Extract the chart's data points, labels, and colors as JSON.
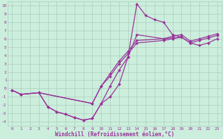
{
  "title": "",
  "xlabel": "Windchill (Refroidissement éolien,°C)",
  "bg_color": "#cceedd",
  "grid_color": "#aaccbb",
  "line_color": "#993399",
  "xlim": [
    -0.5,
    23.5
  ],
  "ylim": [
    -4.5,
    10.5
  ],
  "xticks": [
    0,
    1,
    2,
    3,
    4,
    5,
    6,
    7,
    8,
    9,
    10,
    11,
    12,
    13,
    14,
    15,
    16,
    17,
    18,
    19,
    20,
    21,
    22,
    23
  ],
  "yticks": [
    -4,
    -3,
    -2,
    -1,
    0,
    1,
    2,
    3,
    4,
    5,
    6,
    7,
    8,
    9,
    10
  ],
  "lines": [
    {
      "x": [
        0,
        1,
        3,
        4,
        5,
        6,
        7,
        8,
        9,
        10,
        11,
        12,
        13,
        14,
        15,
        16,
        17,
        18,
        19,
        20,
        21,
        22,
        23
      ],
      "y": [
        -0.2,
        -0.7,
        -0.5,
        -2.2,
        -2.8,
        -3.1,
        -3.5,
        -3.8,
        -3.6,
        -1.8,
        0.3,
        2.2,
        3.8,
        10.2,
        8.8,
        8.3,
        8.0,
        6.5,
        6.2,
        5.5,
        5.2,
        5.5,
        6.0
      ]
    },
    {
      "x": [
        0,
        1,
        3,
        9,
        10,
        11,
        12,
        13,
        14,
        17,
        18,
        19,
        20,
        21,
        22,
        23
      ],
      "y": [
        -0.2,
        -0.7,
        -0.5,
        -1.8,
        0.3,
        1.5,
        3.0,
        4.2,
        5.5,
        5.8,
        6.0,
        6.2,
        5.5,
        5.8,
        6.1,
        6.4
      ]
    },
    {
      "x": [
        0,
        1,
        3,
        9,
        10,
        11,
        12,
        13,
        14,
        17,
        18,
        19,
        20,
        21,
        22,
        23
      ],
      "y": [
        -0.2,
        -0.7,
        -0.5,
        -1.8,
        0.3,
        1.8,
        3.3,
        4.5,
        5.8,
        6.0,
        6.3,
        6.5,
        5.7,
        6.0,
        6.3,
        6.6
      ]
    },
    {
      "x": [
        3,
        4,
        5,
        6,
        7,
        8,
        9,
        10,
        11,
        12,
        13,
        14,
        17,
        19
      ],
      "y": [
        -0.5,
        -2.2,
        -2.8,
        -3.1,
        -3.5,
        -3.8,
        -3.6,
        -1.8,
        -1.0,
        0.5,
        3.8,
        6.5,
        6.0,
        6.2
      ]
    }
  ]
}
